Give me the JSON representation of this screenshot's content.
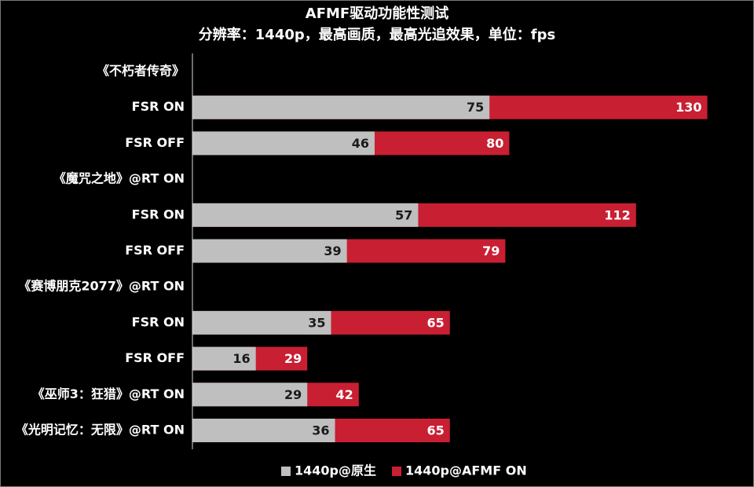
{
  "chart_data": {
    "type": "bar",
    "orientation": "horizontal",
    "layout": "overlap",
    "title": "AFMF驱动功能性测试",
    "subtitle": "分辨率：1440p，最高画质，最高光追效果，单位：fps",
    "categories": [
      "《不朽者传奇》",
      "FSR ON",
      "FSR OFF",
      "《魔咒之地》@RT ON",
      "FSR ON",
      "FSR OFF",
      "《赛博朋克2077》@RT ON",
      "FSR ON",
      "FSR OFF",
      "《巫师3：狂猎》@RT ON",
      "《光明记忆：无限》@RT ON"
    ],
    "series": [
      {
        "name": "1440p@原生",
        "color": "#bfbfbf",
        "label_color": "#1a1a1a",
        "values": [
          null,
          75,
          46,
          null,
          57,
          39,
          null,
          35,
          16,
          29,
          36
        ]
      },
      {
        "name": "1440p@AFMF ON",
        "color": "#c91f32",
        "label_color": "#ffffff",
        "values": [
          null,
          130,
          80,
          null,
          112,
          79,
          null,
          65,
          29,
          42,
          65
        ]
      }
    ],
    "xlim": [
      0,
      140
    ],
    "legend": "bottom"
  }
}
